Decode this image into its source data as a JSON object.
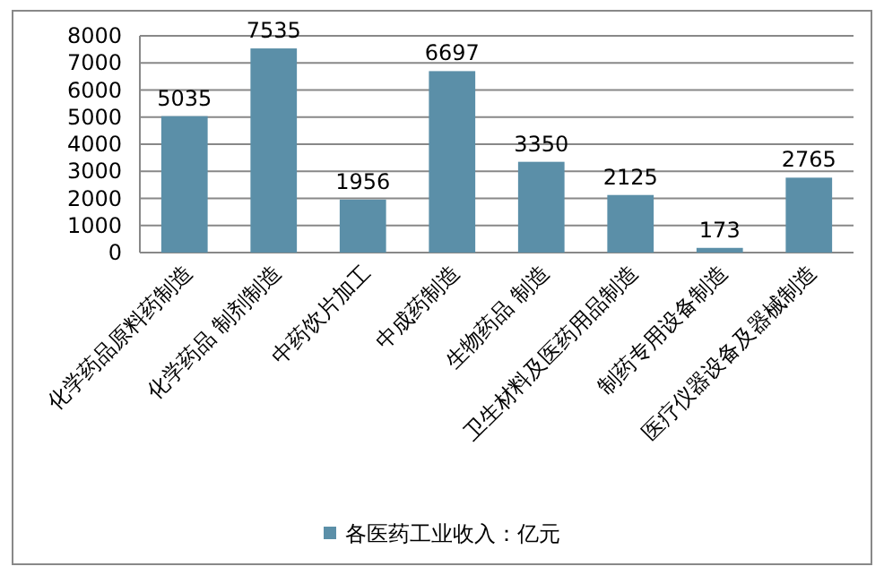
{
  "chart_data": {
    "type": "bar",
    "categories": [
      "化学药品原料药制造",
      "化学药品 制剂制造",
      "中药饮片加工",
      "中成药制造",
      "生物药品 制造",
      "卫生材料及医药用品制造",
      "制药专用设备制造",
      "医疗仪器设备及器械制造"
    ],
    "series": [
      {
        "name": "各医药工业收入：亿元",
        "color": "#5b8fa8",
        "values": [
          5035,
          7535,
          1956,
          6697,
          3350,
          2125,
          173,
          2765
        ]
      }
    ],
    "ylim": [
      0,
      8000
    ],
    "yticks": [
      0,
      1000,
      2000,
      3000,
      4000,
      5000,
      6000,
      7000,
      8000
    ],
    "grid": "y",
    "data_labels": true,
    "legend": "bottom"
  }
}
